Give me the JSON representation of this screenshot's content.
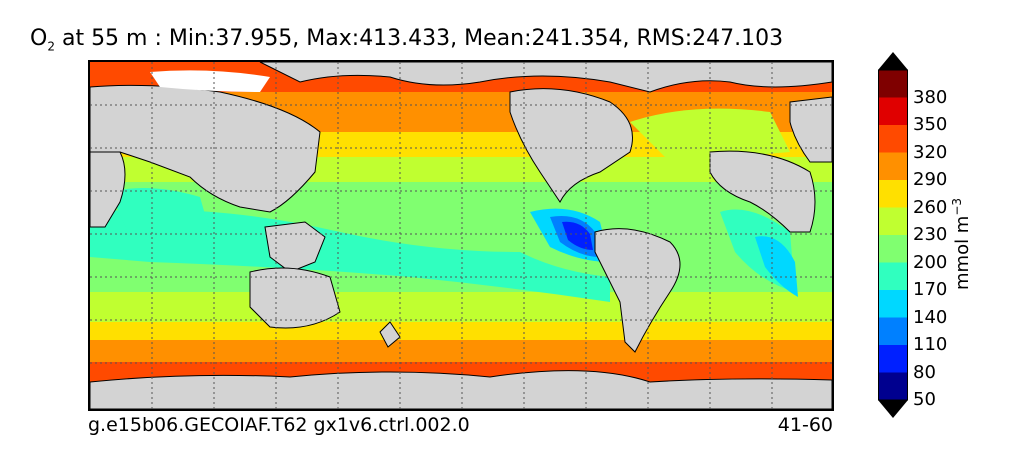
{
  "title": {
    "symbol": "O",
    "subscript": "2",
    "rest": " at 55 m : Min:37.955, Max:413.433, Mean:241.354, RMS:247.103"
  },
  "footer": {
    "run_id": "g.e15b06.GECOIAF.T62 gx1v6.ctrl.002.0",
    "years": "41-60"
  },
  "colorbar": {
    "unit_prefix": "mmol m",
    "unit_exp": "−3",
    "ticks": [
      "380",
      "350",
      "320",
      "290",
      "260",
      "230",
      "200",
      "170",
      "140",
      "110",
      "80",
      "50"
    ],
    "levels": [
      {
        "color": "#7f0000"
      },
      {
        "color": "#e00000"
      },
      {
        "color": "#ff4a00"
      },
      {
        "color": "#ff9000"
      },
      {
        "color": "#ffe000"
      },
      {
        "color": "#c0ff30"
      },
      {
        "color": "#80ff70"
      },
      {
        "color": "#30ffbf"
      },
      {
        "color": "#00d8ff"
      },
      {
        "color": "#0080ff"
      },
      {
        "color": "#0020ff"
      },
      {
        "color": "#00008f"
      }
    ]
  },
  "map_colors": {
    "land": "#d3d3d3",
    "ice": "#ffffff",
    "grid": "#555555"
  }
}
